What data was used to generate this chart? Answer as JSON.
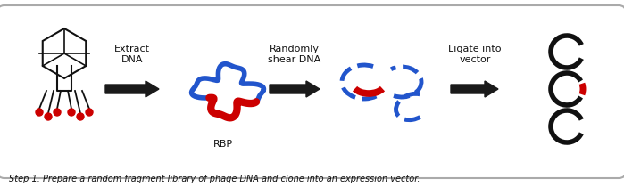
{
  "title": "Step 1. Prepare a random fragment library of phage DNA and clone into an expression vector.",
  "labels": {
    "step1": "Extract\nDNA",
    "step2": "Randomly\nshear DNA",
    "step3": "Ligate into\nvector",
    "rbp": "RBP"
  },
  "colors": {
    "background": "#ffffff",
    "box_edge": "#cccccc",
    "arrow": "#1a1a1a",
    "blue_dna": "#2255cc",
    "red_segment": "#cc0000",
    "phage_body": "#111111",
    "phage_red": "#cc0000",
    "text": "#111111",
    "caption_text": "#111111"
  },
  "figsize": [
    6.99,
    2.1
  ],
  "dpi": 100
}
